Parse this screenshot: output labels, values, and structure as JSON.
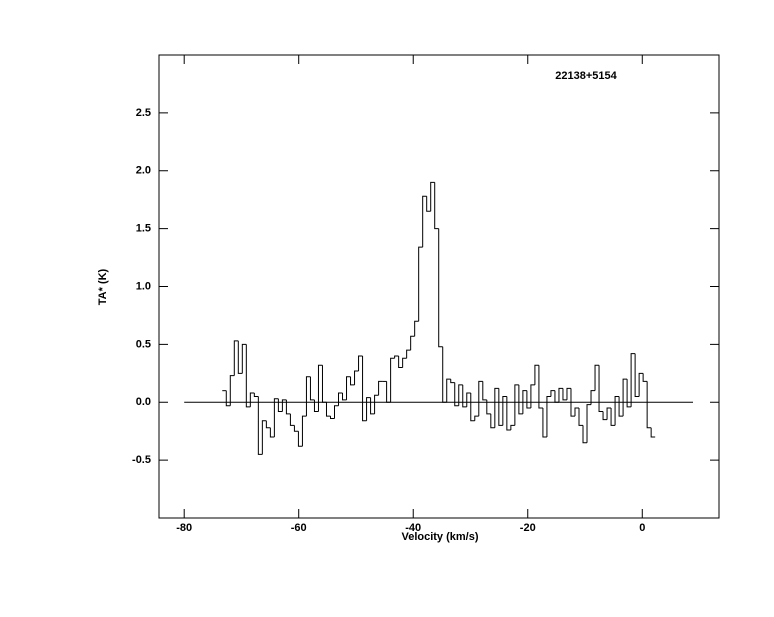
{
  "chart_data": {
    "type": "step",
    "title": "22138+5154",
    "x_label": "Velocity (km/s)",
    "y_label": "TA* (K)",
    "color": "#000000",
    "xlim": [
      -84.4,
      13.4
    ],
    "ylim": [
      -1,
      3
    ],
    "xticks": [
      -80,
      -60,
      -40,
      -20,
      0
    ],
    "yticks": [
      -0.5,
      {
        "value": 0,
        "label": "0.0"
      },
      0.5,
      {
        "value": 1,
        "label": "1.0"
      },
      1.5,
      {
        "value": 2,
        "label": "2.0"
      },
      2.5
    ],
    "x": [
      -73.0,
      -72.3,
      -71.6,
      -70.9,
      -70.2,
      -69.5,
      -68.8,
      -68.1,
      -67.4,
      -66.7,
      -66.0,
      -65.3,
      -64.6,
      -63.9,
      -63.2,
      -62.5,
      -61.8,
      -61.1,
      -60.4,
      -59.7,
      -59.0,
      -58.3,
      -57.6,
      -56.9,
      -56.2,
      -55.5,
      -54.8,
      -54.1,
      -53.4,
      -52.7,
      -52.0,
      -51.3,
      -50.6,
      -49.9,
      -49.2,
      -48.5,
      -47.8,
      -47.1,
      -46.4,
      -45.7,
      -45.0,
      -44.3,
      -43.6,
      -42.9,
      -42.2,
      -41.5,
      -40.8,
      -40.1,
      -39.4,
      -38.7,
      -38.0,
      -37.3,
      -36.6,
      -35.9,
      -35.2,
      -34.5,
      -33.8,
      -33.1,
      -32.4,
      -31.7,
      -31.0,
      -30.3,
      -29.6,
      -28.9,
      -28.2,
      -27.5,
      -26.8,
      -26.1,
      -25.4,
      -24.7,
      -24.0,
      -23.3,
      -22.6,
      -21.9,
      -21.2,
      -20.5,
      -19.8,
      -19.1,
      -18.4,
      -17.7,
      -17.0,
      -16.3,
      -15.6,
      -14.9,
      -14.2,
      -13.5,
      -12.8,
      -12.1,
      -11.4,
      -10.7,
      -10.0,
      -9.3,
      -8.6,
      -7.9,
      -7.2,
      -6.5,
      -5.8,
      -5.1,
      -4.4,
      -3.7,
      -3.0,
      -2.3,
      -1.6,
      -0.9,
      -0.2,
      0.5,
      1.2,
      1.9
    ],
    "values": [
      0.1,
      -0.03,
      0.23,
      0.53,
      0.25,
      0.5,
      -0.04,
      0.08,
      0.05,
      -0.45,
      -0.16,
      -0.22,
      -0.3,
      0.03,
      -0.08,
      0.02,
      -0.1,
      -0.2,
      -0.25,
      -0.38,
      -0.12,
      0.22,
      0.02,
      -0.08,
      0.32,
      0.0,
      -0.12,
      -0.14,
      -0.03,
      0.08,
      0.02,
      0.22,
      0.15,
      0.27,
      0.4,
      -0.16,
      0.04,
      -0.1,
      0.06,
      0.18,
      0.18,
      0.0,
      0.38,
      0.4,
      0.3,
      0.38,
      0.45,
      0.57,
      0.7,
      1.34,
      1.78,
      1.65,
      1.9,
      1.5,
      0.48,
      0.0,
      0.2,
      0.17,
      -0.03,
      0.15,
      -0.04,
      0.08,
      -0.16,
      -0.12,
      0.18,
      0.02,
      -0.1,
      -0.22,
      0.12,
      -0.2,
      0.05,
      -0.24,
      -0.2,
      0.15,
      -0.1,
      0.1,
      -0.05,
      0.15,
      0.32,
      -0.05,
      -0.3,
      0.05,
      0.1,
      0.0,
      0.12,
      0.02,
      0.12,
      -0.12,
      -0.05,
      -0.2,
      -0.35,
      -0.02,
      0.1,
      0.32,
      -0.08,
      -0.15,
      -0.05,
      -0.2,
      0.05,
      -0.12,
      0.2,
      -0.04,
      0.42,
      0.05,
      0.25,
      0.18,
      -0.22,
      -0.3
    ]
  }
}
